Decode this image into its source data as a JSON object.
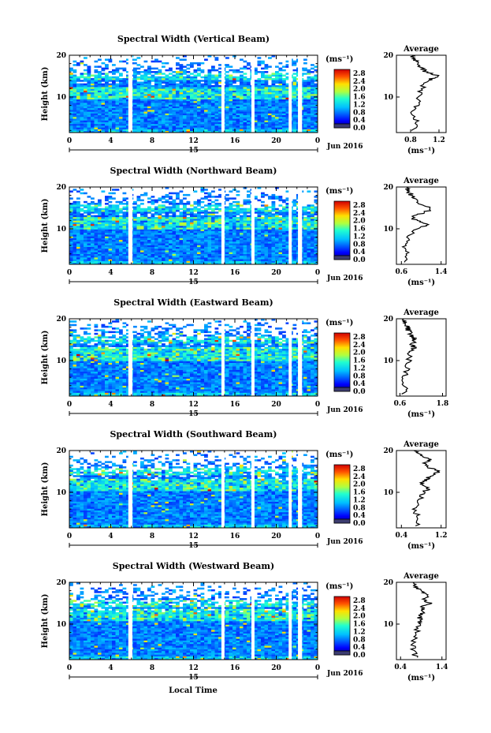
{
  "figure": {
    "bottom_xlabel": "Local Time",
    "date_label": "Jun 2016",
    "day_label": "15",
    "avg_title": "Average",
    "ylabel": "Height (km)",
    "cbar_unit": "(ms⁻¹)",
    "avg_xunit": "(ms⁻¹)"
  },
  "chart_data": [
    {
      "type": "heatmap",
      "title": "Spectral Width (Vertical Beam)",
      "ylabel": "Height (km)",
      "x_ticks": [
        "0",
        "4",
        "8",
        "12",
        "16",
        "20",
        "0"
      ],
      "xlim": [
        0,
        24
      ],
      "ylim": [
        1.5,
        20
      ],
      "y_ticks": [
        "20",
        "10"
      ],
      "colorbar": {
        "unit": "(ms⁻¹)",
        "ticks": [
          "2.8",
          "2.4",
          "2.0",
          "1.6",
          "1.2",
          "0.8",
          "0.4",
          "0.0"
        ],
        "range": [
          0,
          3.0
        ]
      },
      "data_gaps_hours": [
        [
          5.7,
          6.1
        ],
        [
          14.7,
          15.0
        ],
        [
          17.6,
          17.9
        ],
        [
          21.2,
          21.5
        ],
        [
          22.1,
          22.5
        ]
      ],
      "average_profile": {
        "title": "Average",
        "xlim": [
          0.6,
          1.3
        ],
        "x_ticks": [
          "0.8",
          "1.2"
        ],
        "y_ticks": [
          "20",
          "10"
        ],
        "heights": [
          2,
          4,
          6,
          8,
          10,
          12,
          14,
          15,
          16,
          17,
          18,
          19,
          20
        ],
        "values": [
          0.85,
          0.9,
          0.82,
          0.88,
          0.92,
          0.95,
          1.05,
          1.18,
          1.02,
          0.95,
          0.9,
          0.85,
          0.82
        ]
      }
    },
    {
      "type": "heatmap",
      "title": "Spectral Width (Northward Beam)",
      "ylabel": "Height (km)",
      "x_ticks": [
        "0",
        "4",
        "8",
        "12",
        "16",
        "20",
        "0"
      ],
      "xlim": [
        0,
        24
      ],
      "ylim": [
        1.5,
        20
      ],
      "y_ticks": [
        "20",
        "10"
      ],
      "colorbar": {
        "unit": "(ms⁻¹)",
        "ticks": [
          "2.8",
          "2.4",
          "2.0",
          "1.6",
          "1.2",
          "0.8",
          "0.4",
          "0.0"
        ],
        "range": [
          0,
          3.0
        ]
      },
      "data_gaps_hours": [
        [
          5.7,
          6.1
        ],
        [
          14.7,
          15.0
        ],
        [
          17.6,
          17.9
        ],
        [
          21.2,
          21.5
        ],
        [
          22.1,
          22.5
        ]
      ],
      "average_profile": {
        "title": "Average",
        "xlim": [
          0.5,
          1.5
        ],
        "x_ticks": [
          "0.6",
          "1.4"
        ],
        "y_ticks": [
          "20",
          "10"
        ],
        "heights": [
          2,
          4,
          6,
          8,
          10,
          11,
          12,
          13,
          14,
          15,
          16,
          17,
          18,
          19,
          20
        ],
        "values": [
          0.65,
          0.7,
          0.68,
          0.75,
          0.9,
          1.15,
          0.9,
          0.8,
          1.1,
          1.2,
          0.95,
          0.85,
          0.8,
          0.75,
          0.7
        ]
      }
    },
    {
      "type": "heatmap",
      "title": "Spectral Width (Eastward Beam)",
      "ylabel": "Height (km)",
      "x_ticks": [
        "0",
        "4",
        "8",
        "12",
        "16",
        "20",
        "0"
      ],
      "xlim": [
        0,
        24
      ],
      "ylim": [
        1.5,
        20
      ],
      "y_ticks": [
        "20",
        "10"
      ],
      "colorbar": {
        "unit": "(ms⁻¹)",
        "ticks": [
          "2.8",
          "2.4",
          "2.0",
          "1.6",
          "1.2",
          "0.8",
          "0.4",
          "0.0"
        ],
        "range": [
          0,
          3.0
        ]
      },
      "data_gaps_hours": [
        [
          5.7,
          6.1
        ],
        [
          14.7,
          15.0
        ],
        [
          17.6,
          17.9
        ],
        [
          21.2,
          21.5
        ],
        [
          22.1,
          22.5
        ]
      ],
      "average_profile": {
        "title": "Average",
        "xlim": [
          0.5,
          1.9
        ],
        "x_ticks": [
          "0.6",
          "1.8"
        ],
        "y_ticks": [
          "20",
          "10"
        ],
        "heights": [
          2,
          4,
          6,
          8,
          10,
          12,
          13,
          14,
          15,
          16,
          17,
          18,
          19,
          20
        ],
        "values": [
          0.7,
          0.75,
          0.72,
          0.8,
          0.85,
          0.9,
          1.0,
          0.95,
          1.05,
          0.9,
          0.85,
          0.8,
          0.75,
          0.7
        ]
      }
    },
    {
      "type": "heatmap",
      "title": "Spectral Width (Southward Beam)",
      "ylabel": "Height (km)",
      "x_ticks": [
        "0",
        "4",
        "8",
        "12",
        "16",
        "20",
        "0"
      ],
      "xlim": [
        0,
        24
      ],
      "ylim": [
        1.5,
        20
      ],
      "y_ticks": [
        "20",
        "10"
      ],
      "colorbar": {
        "unit": "(ms⁻¹)",
        "ticks": [
          "2.8",
          "2.4",
          "2.0",
          "1.6",
          "1.2",
          "0.8",
          "0.4",
          "0.0"
        ],
        "range": [
          0,
          3.0
        ]
      },
      "data_gaps_hours": [
        [
          5.7,
          6.1
        ],
        [
          14.7,
          15.0
        ],
        [
          17.6,
          17.9
        ],
        [
          21.2,
          21.5
        ],
        [
          22.1,
          22.5
        ]
      ],
      "average_profile": {
        "title": "Average",
        "xlim": [
          0.3,
          1.3
        ],
        "x_ticks": [
          "0.4",
          "1.2"
        ],
        "y_ticks": [
          "20",
          "10"
        ],
        "heights": [
          2,
          4,
          6,
          8,
          10,
          11,
          12,
          13,
          14,
          15,
          16,
          17,
          18,
          19,
          20
        ],
        "values": [
          0.7,
          0.72,
          0.68,
          0.78,
          0.85,
          0.95,
          0.8,
          0.88,
          1.0,
          1.15,
          0.95,
          0.85,
          1.0,
          0.75,
          0.65
        ]
      }
    },
    {
      "type": "heatmap",
      "title": "Spectral Width (Westward Beam)",
      "ylabel": "Height (km)",
      "x_ticks": [
        "0",
        "4",
        "8",
        "12",
        "16",
        "20",
        "0"
      ],
      "xlim": [
        0,
        24
      ],
      "ylim": [
        1.5,
        20
      ],
      "y_ticks": [
        "20",
        "10"
      ],
      "colorbar": {
        "unit": "(ms⁻¹)",
        "ticks": [
          "2.8",
          "2.4",
          "2.0",
          "1.6",
          "1.2",
          "0.8",
          "0.4",
          "0.0"
        ],
        "range": [
          0,
          3.0
        ]
      },
      "data_gaps_hours": [
        [
          5.7,
          6.1
        ],
        [
          14.7,
          15.0
        ],
        [
          17.6,
          17.9
        ],
        [
          21.2,
          21.5
        ],
        [
          22.1,
          22.5
        ]
      ],
      "average_profile": {
        "title": "Average",
        "xlim": [
          0.3,
          1.5
        ],
        "x_ticks": [
          "0.4",
          "1.4"
        ],
        "y_ticks": [
          "20",
          "10"
        ],
        "heights": [
          2,
          4,
          6,
          8,
          10,
          11,
          12,
          13,
          14,
          15,
          16,
          17,
          18,
          19,
          20
        ],
        "values": [
          0.75,
          0.72,
          0.7,
          0.78,
          0.85,
          0.9,
          0.82,
          1.0,
          0.9,
          1.1,
          0.95,
          1.05,
          0.85,
          0.8,
          0.7
        ]
      }
    }
  ]
}
